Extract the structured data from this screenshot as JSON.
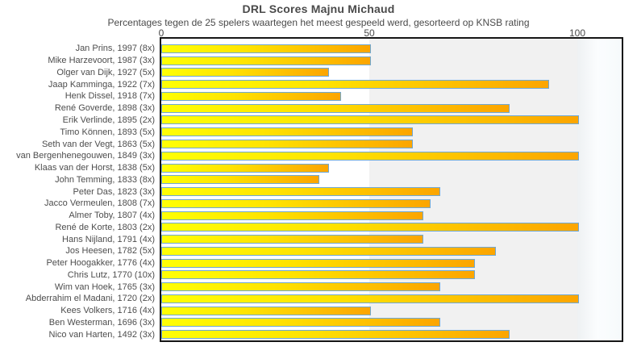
{
  "chart_data": {
    "type": "bar",
    "orientation": "horizontal",
    "title": "DRL Scores Majnu Michaud",
    "subtitle": "Percentages tegen de 25 spelers waartegen het meest gespeeld werd, gesorteerd op KNSB rating",
    "xlabel": "",
    "ylabel": "",
    "xlim": [
      0,
      110
    ],
    "xticks": [
      0,
      50,
      100
    ],
    "xtick_labels": [
      "0",
      "50",
      "100"
    ],
    "grid": "vertical-bands",
    "legend": "none",
    "categories": [
      "Jan Prins, 1997 (8x)",
      "Mike Harzevoort, 1987 (3x)",
      "Olger van Dijk, 1927 (5x)",
      "Jaap Kamminga, 1922 (7x)",
      "Henk Dissel, 1918 (7x)",
      "René Goverde, 1898 (3x)",
      "Erik Verlinde, 1895 (2x)",
      "Timo Können, 1893 (5x)",
      "Seth van der Vegt, 1863 (5x)",
      "van Bergenhenegouwen, 1849 (3x)",
      "Klaas van der Horst, 1838 (5x)",
      "John Temming, 1833 (8x)",
      "Peter Das, 1823 (3x)",
      "Jacco Vermeulen, 1808 (7x)",
      "Almer Toby, 1807 (4x)",
      "René de Korte, 1803 (2x)",
      "Hans Nijland, 1791 (4x)",
      "Jos Heesen, 1782 (5x)",
      "Peter Hoogakker, 1776 (4x)",
      "Chris Lutz, 1770 (10x)",
      "Wim van Hoek, 1765 (3x)",
      "Abderrahim el Madani, 1720 (2x)",
      "Kees Volkers, 1716 (4x)",
      "Ben Westerman, 1696 (3x)",
      "Nico van Harten, 1492 (3x)"
    ],
    "values": [
      50,
      50,
      40,
      92.9,
      42.9,
      83.3,
      100,
      60,
      60,
      100,
      40,
      37.5,
      66.7,
      64.3,
      62.5,
      100,
      62.5,
      80,
      75,
      75,
      66.7,
      100,
      50,
      66.7,
      83.3
    ],
    "colors": {
      "bar_gradient_start": "#ffff00",
      "bar_gradient_end": "#ffa500",
      "bar_border": "#6fa8d4",
      "band_alternate": "#f1f1f1",
      "plot_border": "#161616",
      "text": "#4d4d4d"
    }
  }
}
